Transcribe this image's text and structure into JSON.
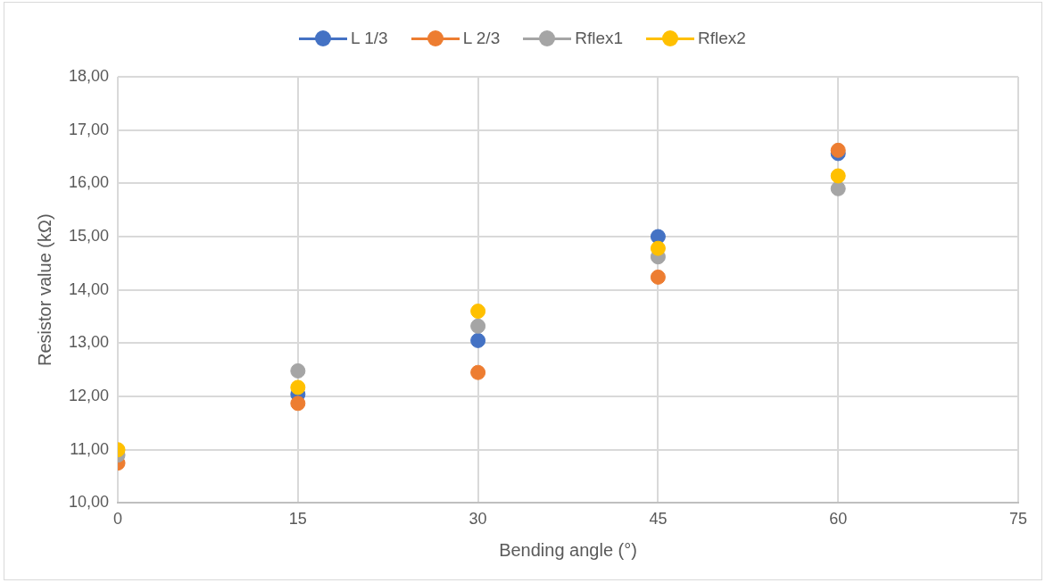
{
  "chart_data": {
    "type": "scatter",
    "xlabel": "Bending angle (°)",
    "ylabel": "Resistor value (kΩ)",
    "x": [
      0,
      15,
      30,
      45,
      60
    ],
    "series": [
      {
        "name": "L 1/3",
        "color": "#4472c4",
        "values": [
          null,
          12.04,
          13.05,
          15.0,
          16.56
        ]
      },
      {
        "name": "L 2/3",
        "color": "#ed7d31",
        "values": [
          10.75,
          11.87,
          12.45,
          14.24,
          16.62
        ]
      },
      {
        "name": "Rflex1",
        "color": "#a5a5a5",
        "values": [
          10.9,
          12.48,
          13.32,
          14.62,
          15.9
        ]
      },
      {
        "name": "Rflex2",
        "color": "#ffc000",
        "values": [
          11.0,
          12.17,
          13.6,
          14.78,
          16.14
        ]
      }
    ],
    "xlim": [
      0,
      75
    ],
    "xticks": [
      0,
      15,
      30,
      45,
      60,
      75
    ],
    "ylim": [
      10,
      18
    ],
    "yticks": [
      {
        "value": 10,
        "label": "10,00"
      },
      {
        "value": 11,
        "label": "11,00"
      },
      {
        "value": 12,
        "label": "12,00"
      },
      {
        "value": 13,
        "label": "13,00"
      },
      {
        "value": 14,
        "label": "14,00"
      },
      {
        "value": 15,
        "label": "15,00"
      },
      {
        "value": 16,
        "label": "16,00"
      },
      {
        "value": 17,
        "label": "17,00"
      },
      {
        "value": 18,
        "label": "18,00"
      }
    ],
    "grid": true,
    "legend": "top",
    "marker": "circle"
  }
}
